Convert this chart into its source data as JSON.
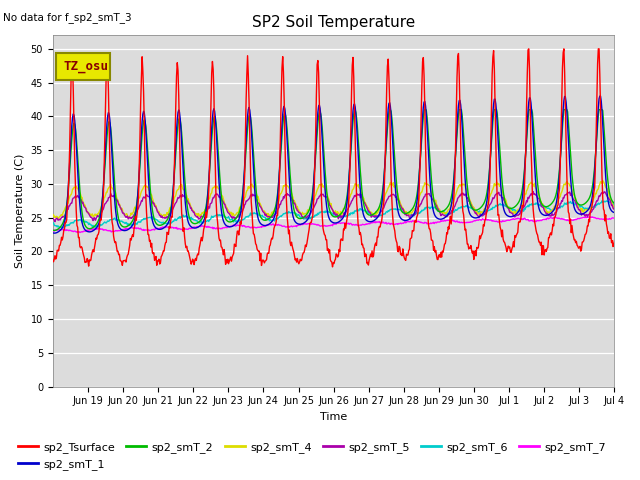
{
  "title": "SP2 Soil Temperature",
  "no_data_text": "No data for f_sp2_smT_3",
  "tz_label": "TZ_osu",
  "ylabel": "Soil Temperature (C)",
  "xlabel": "Time",
  "ylim": [
    0,
    52
  ],
  "yticks": [
    0,
    5,
    10,
    15,
    20,
    25,
    30,
    35,
    40,
    45,
    50
  ],
  "bg_color": "#dcdcdc",
  "series_colors": {
    "sp2_Tsurface": "#ff0000",
    "sp2_smT_1": "#0000cc",
    "sp2_smT_2": "#00bb00",
    "sp2_smT_4": "#dddd00",
    "sp2_smT_5": "#aa00aa",
    "sp2_smT_6": "#00cccc",
    "sp2_smT_7": "#ff00ff"
  },
  "tz_box_facecolor": "#e8e800",
  "tz_box_edgecolor": "#888800",
  "tz_text_color": "#880000",
  "figsize": [
    6.4,
    4.8
  ],
  "dpi": 100,
  "linewidth": 1.0,
  "num_days": 16,
  "x_tick_labels": [
    "Jun 19",
    "Jun 20",
    "Jun 21",
    "Jun 22",
    "Jun 23",
    "Jun 24",
    "Jun 25",
    "Jun 26",
    "Jun 27",
    "Jun 28",
    "Jun 29",
    "Jun 30",
    "Jul 1",
    "Jul 2",
    "Jul 3",
    "Jul 4"
  ],
  "title_fontsize": 11,
  "tick_fontsize": 7,
  "label_fontsize": 8,
  "legend_fontsize": 8
}
